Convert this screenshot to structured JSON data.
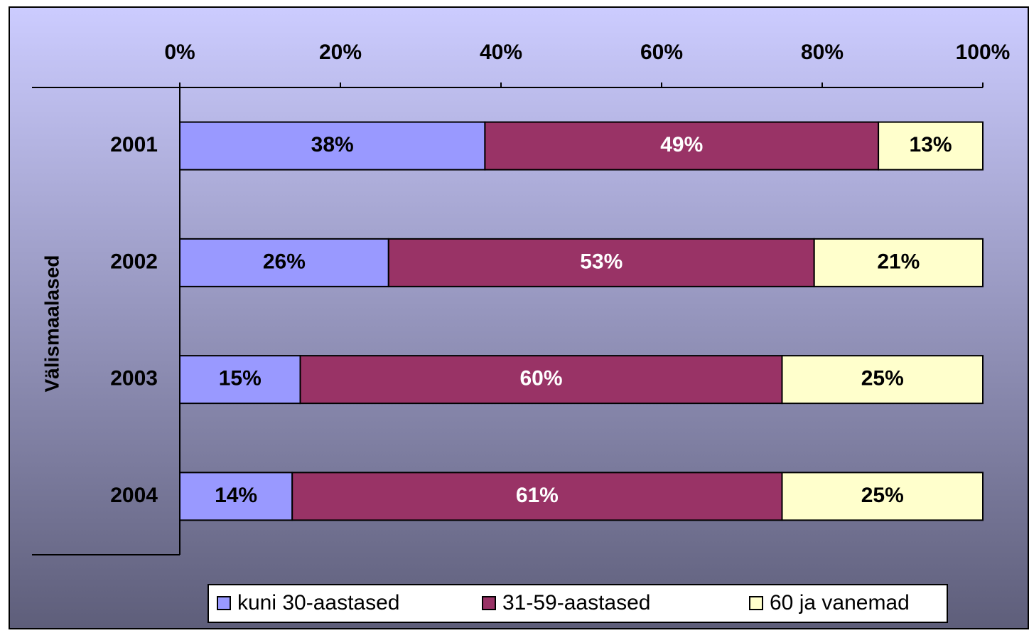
{
  "chart_data": {
    "type": "stacked_bar_horizontal",
    "group_label": "Välismaalased",
    "categories": [
      "2001",
      "2002",
      "2003",
      "2004"
    ],
    "series": [
      {
        "name": "kuni 30-aastased",
        "color": "#9999ff",
        "label_color": "#000000",
        "values": [
          38,
          26,
          15,
          14
        ],
        "value_labels": [
          "38%",
          "26%",
          "15%",
          "14%"
        ]
      },
      {
        "name": "31-59-aastased",
        "color": "#993366",
        "label_color": "#ffffff",
        "values": [
          49,
          53,
          60,
          61
        ],
        "value_labels": [
          "49%",
          "53%",
          "60%",
          "61%"
        ]
      },
      {
        "name": "60 ja vanemad",
        "color": "#ffffcc",
        "label_color": "#000000",
        "values": [
          13,
          21,
          25,
          25
        ],
        "value_labels": [
          "13%",
          "21%",
          "25%",
          "25%"
        ]
      }
    ],
    "xlim": [
      0,
      100
    ],
    "xticks": [
      {
        "value": 0,
        "label": "0%"
      },
      {
        "value": 20,
        "label": "20%"
      },
      {
        "value": 40,
        "label": "40%"
      },
      {
        "value": 60,
        "label": "60%"
      },
      {
        "value": 80,
        "label": "80%"
      },
      {
        "value": 100,
        "label": "100%"
      }
    ],
    "legend": "bottom"
  }
}
